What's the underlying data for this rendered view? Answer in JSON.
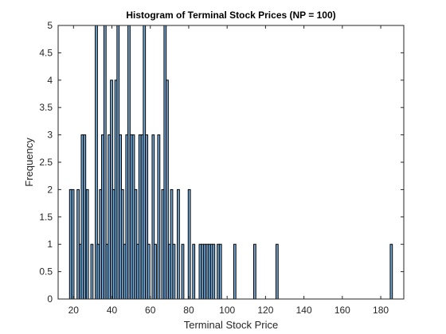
{
  "chart_data": {
    "type": "bar",
    "title": "Histogram of Terminal Stock Prices (NP = 100)",
    "xlabel": "Terminal Stock Price",
    "ylabel": "Frequency",
    "xlim": [
      12,
      192
    ],
    "ylim": [
      0,
      5
    ],
    "xticks": [
      "20",
      "40",
      "60",
      "80",
      "100",
      "120",
      "140",
      "160",
      "180"
    ],
    "yticks": [
      "0",
      "0.5",
      "1",
      "1.5",
      "2",
      "2.5",
      "3",
      "3.5",
      "4",
      "4.5",
      "5"
    ],
    "bar_color": "#75abd8",
    "grid": false,
    "bins": [
      {
        "x": 18.5,
        "count": 2
      },
      {
        "x": 19.7,
        "count": 2
      },
      {
        "x": 22.4,
        "count": 2
      },
      {
        "x": 23.6,
        "count": 1
      },
      {
        "x": 24.6,
        "count": 3
      },
      {
        "x": 25.8,
        "count": 3
      },
      {
        "x": 27.2,
        "count": 2
      },
      {
        "x": 29.6,
        "count": 1
      },
      {
        "x": 31.9,
        "count": 5
      },
      {
        "x": 32.9,
        "count": 1
      },
      {
        "x": 34.1,
        "count": 2
      },
      {
        "x": 35.2,
        "count": 3
      },
      {
        "x": 36.4,
        "count": 5
      },
      {
        "x": 37.5,
        "count": 1
      },
      {
        "x": 38.6,
        "count": 3
      },
      {
        "x": 39.8,
        "count": 4
      },
      {
        "x": 40.9,
        "count": 2
      },
      {
        "x": 42.1,
        "count": 4
      },
      {
        "x": 43.2,
        "count": 5
      },
      {
        "x": 44.4,
        "count": 3
      },
      {
        "x": 45.5,
        "count": 2
      },
      {
        "x": 46.7,
        "count": 1
      },
      {
        "x": 47.8,
        "count": 3
      },
      {
        "x": 48.9,
        "count": 5
      },
      {
        "x": 50.1,
        "count": 3
      },
      {
        "x": 51.2,
        "count": 3
      },
      {
        "x": 52.4,
        "count": 2
      },
      {
        "x": 53.5,
        "count": 1
      },
      {
        "x": 54.6,
        "count": 3
      },
      {
        "x": 55.8,
        "count": 3
      },
      {
        "x": 56.9,
        "count": 5
      },
      {
        "x": 58.1,
        "count": 3
      },
      {
        "x": 59.2,
        "count": 1
      },
      {
        "x": 61.5,
        "count": 3
      },
      {
        "x": 62.6,
        "count": 1
      },
      {
        "x": 64.4,
        "count": 3
      },
      {
        "x": 66.5,
        "count": 2
      },
      {
        "x": 67.7,
        "count": 5
      },
      {
        "x": 68.8,
        "count": 4
      },
      {
        "x": 70.0,
        "count": 1
      },
      {
        "x": 71.1,
        "count": 2
      },
      {
        "x": 72.3,
        "count": 1
      },
      {
        "x": 74.6,
        "count": 2
      },
      {
        "x": 76.9,
        "count": 1
      },
      {
        "x": 80.3,
        "count": 2
      },
      {
        "x": 82.6,
        "count": 1
      },
      {
        "x": 86.0,
        "count": 1
      },
      {
        "x": 87.2,
        "count": 1
      },
      {
        "x": 88.4,
        "count": 1
      },
      {
        "x": 89.6,
        "count": 1
      },
      {
        "x": 90.7,
        "count": 1
      },
      {
        "x": 91.9,
        "count": 1
      },
      {
        "x": 93.0,
        "count": 1
      },
      {
        "x": 95.4,
        "count": 1
      },
      {
        "x": 96.5,
        "count": 1
      },
      {
        "x": 104.0,
        "count": 1
      },
      {
        "x": 114.4,
        "count": 1
      },
      {
        "x": 126.0,
        "count": 1
      },
      {
        "x": 185.5,
        "count": 1
      }
    ]
  }
}
